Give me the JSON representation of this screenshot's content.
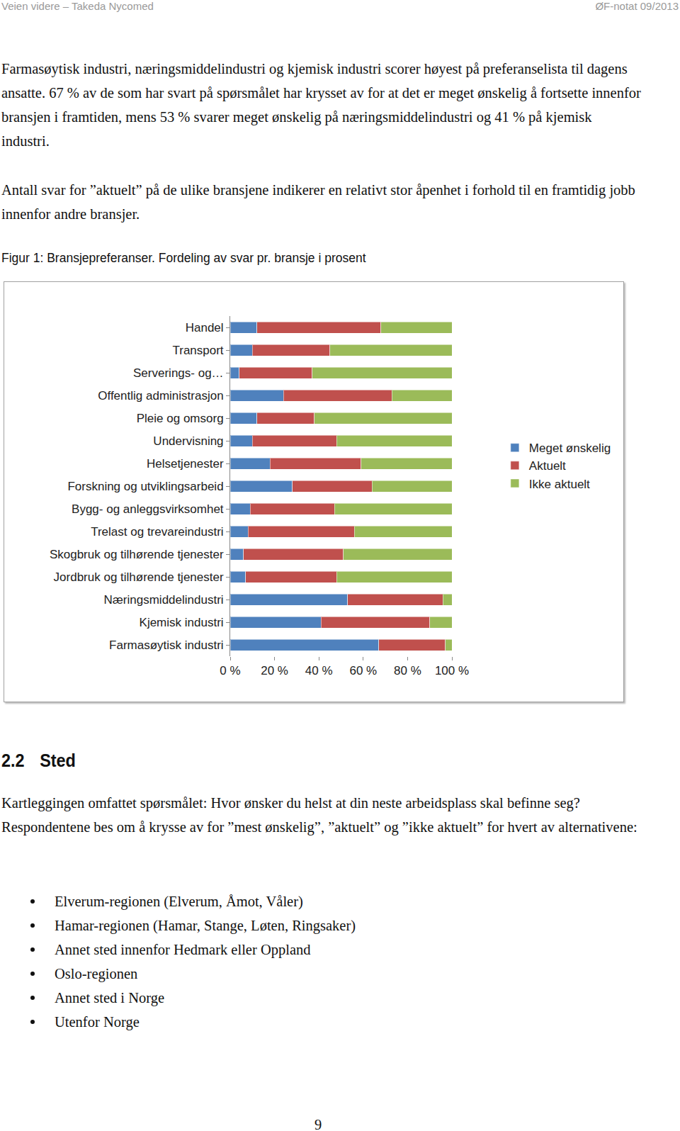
{
  "header": {
    "left": "Veien videre – Takeda Nycomed",
    "right": "ØF-notat 09/2013"
  },
  "paragraphs": [
    "Farmasøytisk industri, næringsmiddelindustri og kjemisk industri scorer høyest på preferanselista til dagens ansatte. 67 % av de som har svart på spørsmålet har krysset av for at det er meget ønskelig å fortsette innenfor bransjen i framtiden, mens 53 % svarer meget ønskelig på næringsmiddelindustri og 41 % på kjemisk industri.",
    "Antall svar for ”aktuelt” på de ulike bransjene indikerer en relativt stor åpenhet i forhold til en framtidig jobb innenfor andre bransjer."
  ],
  "figure_caption": "Figur 1: Bransjepreferanser. Fordeling av svar pr. bransje i prosent",
  "chart_data": {
    "type": "bar",
    "orientation": "horizontal",
    "stacked": true,
    "grid": false,
    "legend": "right",
    "categories": [
      "Handel",
      "Transport",
      "Serverings- og…",
      "Offentlig administrasjon",
      "Pleie og omsorg",
      "Undervisning",
      "Helsetjenester",
      "Forskning og utviklingsarbeid",
      "Bygg- og anleggsvirksomhet",
      "Trelast og trevareindustri",
      "Skogbruk og tilhørende tjenester",
      "Jordbruk og tilhørende tjenester",
      "Næringsmiddelindustri",
      "Kjemisk industri",
      "Farmasøytisk industri"
    ],
    "series": [
      {
        "name": "Meget ønskelig",
        "color": "#4f81bd",
        "values": [
          12,
          10,
          4,
          24,
          12,
          10,
          18,
          28,
          9,
          8,
          6,
          7,
          53,
          41,
          67
        ]
      },
      {
        "name": "Aktuelt",
        "color": "#c0504d",
        "values": [
          56,
          35,
          33,
          49,
          26,
          38,
          41,
          36,
          38,
          48,
          45,
          41,
          43,
          49,
          30
        ]
      },
      {
        "name": "Ikke aktuelt",
        "color": "#9bbb59",
        "values": [
          32,
          55,
          63,
          27,
          62,
          52,
          41,
          36,
          53,
          44,
          49,
          52,
          4,
          10,
          3
        ]
      }
    ],
    "xlim": [
      0,
      100
    ],
    "xticks": [
      {
        "value": 0,
        "label": "0 %"
      },
      {
        "value": 20,
        "label": "20 %"
      },
      {
        "value": 40,
        "label": "40 %"
      },
      {
        "value": 60,
        "label": "60 %"
      },
      {
        "value": 80,
        "label": "80 %"
      },
      {
        "value": 100,
        "label": "100 %"
      }
    ]
  },
  "section": {
    "number": "2.2",
    "title": "Sted"
  },
  "section_text": "Kartleggingen omfattet spørsmålet: Hvor ønsker du helst at din neste arbeidsplass skal befinne seg? Respondentene bes om å krysse av for ”mest ønskelig”, ”aktuelt” og ”ikke aktuelt” for hvert av alternativene:",
  "list": [
    "Elverum-regionen (Elverum, Åmot, Våler)",
    "Hamar-regionen (Hamar, Stange, Løten, Ringsaker)",
    "Annet sted innenfor Hedmark eller Oppland",
    "Oslo-regionen",
    "Annet sted i Norge",
    "Utenfor Norge"
  ],
  "page_number": 9
}
